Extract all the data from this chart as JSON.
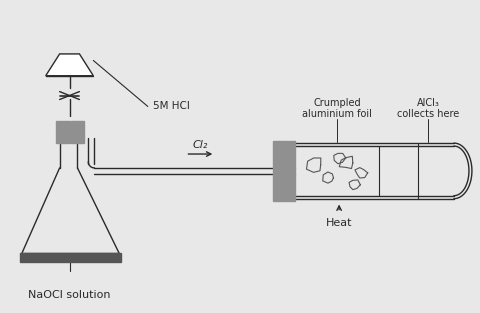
{
  "bg_color": "#e8e8e8",
  "line_color": "#2a2a2a",
  "gray_fill": "#909090",
  "dark_bar": "#555555",
  "white": "#ffffff",
  "labels": {
    "naocl": "NaOCl solution",
    "hcl": "5M HCl",
    "cl2": "Cl₂",
    "al_foil": "Crumpled\naluminium foil",
    "alcl3": "AlCl₃\ncollects here",
    "heat": "Heat"
  },
  "figsize": [
    4.8,
    3.13
  ],
  "dpi": 100
}
